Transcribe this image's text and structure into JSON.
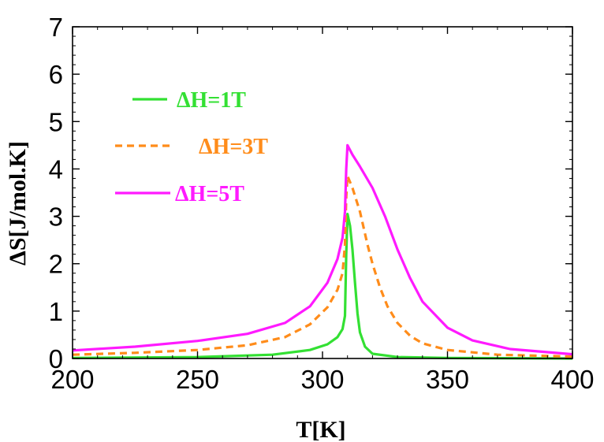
{
  "chart_data": {
    "type": "line",
    "title": "",
    "xlabel": "T[K]",
    "ylabel": "ΔS[J/mol.K]",
    "xlim": [
      200,
      400
    ],
    "ylim": [
      0,
      7
    ],
    "grid": false,
    "legend_position": "top-left",
    "x_ticks": [
      "200",
      "250",
      "300",
      "350",
      "400"
    ],
    "y_ticks": [
      "0",
      "1",
      "2",
      "3",
      "4",
      "5",
      "6",
      "7"
    ],
    "series": [
      {
        "name": "ΔH=1T",
        "color": "#33e033",
        "dash": "solid",
        "points": [
          [
            200,
            0.01
          ],
          [
            250,
            0.03
          ],
          [
            280,
            0.08
          ],
          [
            295,
            0.18
          ],
          [
            302,
            0.3
          ],
          [
            306,
            0.45
          ],
          [
            308,
            0.62
          ],
          [
            309,
            0.9
          ],
          [
            309.5,
            2.2
          ],
          [
            310,
            3.05
          ],
          [
            311,
            2.8
          ],
          [
            312,
            2.3
          ],
          [
            313,
            1.6
          ],
          [
            314,
            0.95
          ],
          [
            315,
            0.55
          ],
          [
            317,
            0.25
          ],
          [
            320,
            0.1
          ],
          [
            330,
            0.03
          ],
          [
            350,
            0.01
          ],
          [
            400,
            0.0
          ]
        ]
      },
      {
        "name": "ΔH=3T",
        "color": "#ff8c1a",
        "dash": "dashed",
        "points": [
          [
            200,
            0.08
          ],
          [
            225,
            0.12
          ],
          [
            250,
            0.18
          ],
          [
            270,
            0.28
          ],
          [
            285,
            0.45
          ],
          [
            295,
            0.72
          ],
          [
            302,
            1.08
          ],
          [
            306,
            1.45
          ],
          [
            308,
            1.8
          ],
          [
            309,
            2.4
          ],
          [
            309.5,
            3.4
          ],
          [
            310,
            3.85
          ],
          [
            312,
            3.6
          ],
          [
            315,
            3.1
          ],
          [
            318,
            2.4
          ],
          [
            320,
            2.0
          ],
          [
            323,
            1.5
          ],
          [
            326,
            1.1
          ],
          [
            330,
            0.75
          ],
          [
            335,
            0.48
          ],
          [
            340,
            0.32
          ],
          [
            350,
            0.18
          ],
          [
            370,
            0.08
          ],
          [
            400,
            0.04
          ]
        ]
      },
      {
        "name": "ΔH=5T",
        "color": "#ff1aff",
        "dash": "solid",
        "points": [
          [
            200,
            0.17
          ],
          [
            225,
            0.25
          ],
          [
            250,
            0.37
          ],
          [
            270,
            0.52
          ],
          [
            285,
            0.75
          ],
          [
            295,
            1.1
          ],
          [
            302,
            1.6
          ],
          [
            306,
            2.1
          ],
          [
            308,
            2.55
          ],
          [
            309,
            3.1
          ],
          [
            309.5,
            4.0
          ],
          [
            310,
            4.5
          ],
          [
            312,
            4.3
          ],
          [
            315,
            4.05
          ],
          [
            320,
            3.6
          ],
          [
            325,
            3.0
          ],
          [
            330,
            2.3
          ],
          [
            335,
            1.7
          ],
          [
            340,
            1.2
          ],
          [
            350,
            0.65
          ],
          [
            360,
            0.38
          ],
          [
            375,
            0.2
          ],
          [
            400,
            0.09
          ]
        ]
      }
    ]
  }
}
